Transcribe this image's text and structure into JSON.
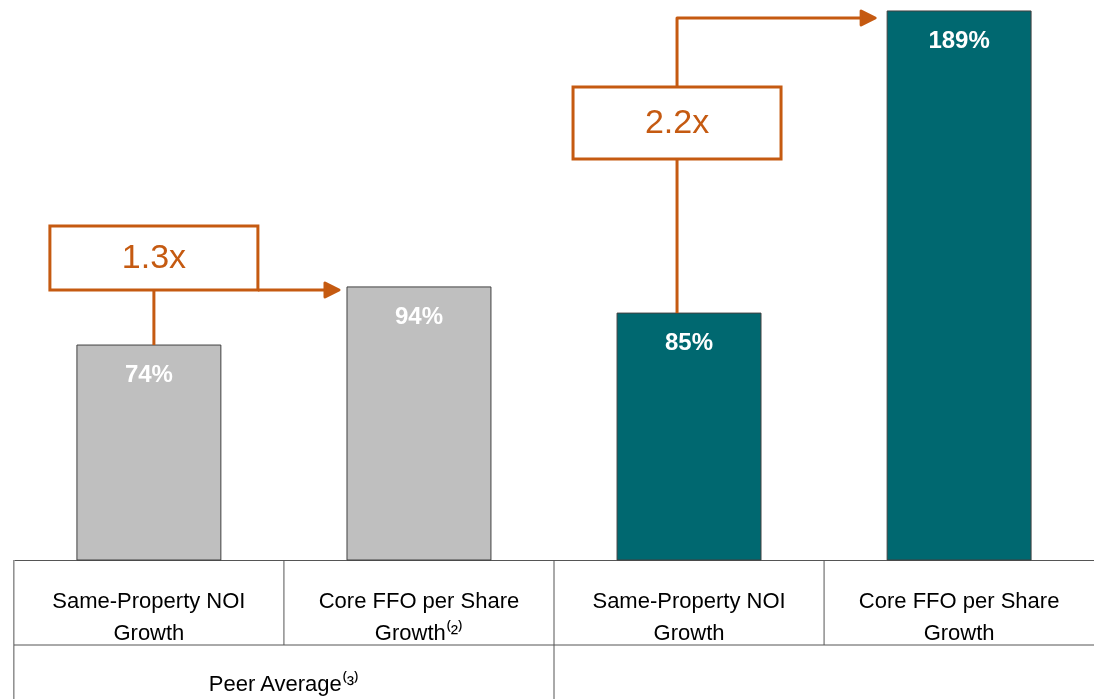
{
  "chart_data": {
    "type": "bar",
    "categories": [
      "Same-Property NOI Growth",
      "Core FFO per Share Growth⁽²⁾",
      "Same-Property NOI Growth",
      "Core FFO per Share Growth"
    ],
    "values": [
      74,
      94,
      85,
      189
    ],
    "colors": [
      "#bfbfbf",
      "#bfbfbf",
      "#006870",
      "#006870"
    ],
    "data_labels": true,
    "value_labels": [
      "74%",
      "94%",
      "85%",
      "189%"
    ],
    "annotations": [
      "1.3x",
      "2.2x",
      "Peer Average⁽³⁾"
    ]
  }
}
